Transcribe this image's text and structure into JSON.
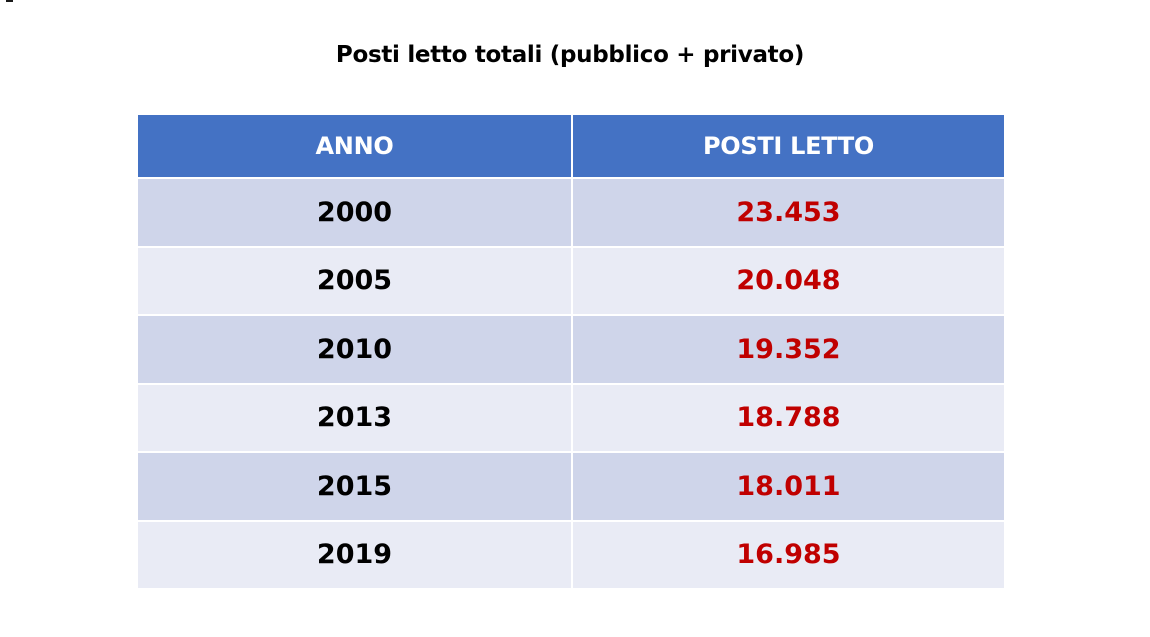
{
  "title": "Posti letto totali (pubblico + privato)",
  "colors": {
    "header_bg": "#4472c4",
    "row_dark": "#cfd5ea",
    "row_light": "#e9ebf5",
    "value_red": "#c00000"
  },
  "table": {
    "headers": [
      "ANNO",
      "POSTI LETTO"
    ],
    "rows": [
      {
        "year": "2000",
        "beds": "23.453"
      },
      {
        "year": "2005",
        "beds": "20.048"
      },
      {
        "year": "2010",
        "beds": "19.352"
      },
      {
        "year": "2013",
        "beds": "18.788"
      },
      {
        "year": "2015",
        "beds": "18.011"
      },
      {
        "year": "2019",
        "beds": "16.985"
      }
    ]
  }
}
